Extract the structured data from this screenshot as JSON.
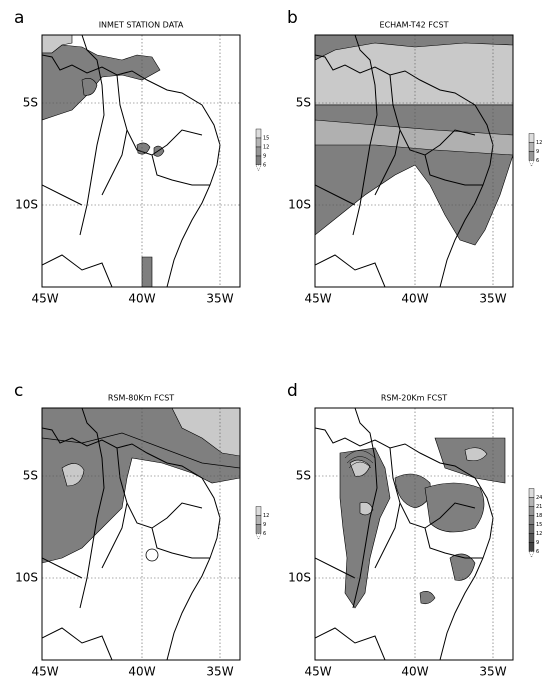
{
  "panels": [
    {
      "letter": "a",
      "title": "INMET STATION DATA",
      "lon_labels": [
        "45W",
        "40W",
        "35W"
      ],
      "lat_labels": [
        "5S",
        "10S"
      ],
      "colorbar_labels": [
        "15",
        "12",
        "9",
        "6"
      ]
    },
    {
      "letter": "b",
      "title": "ECHAM-T42 FCST",
      "lon_labels": [
        "45W",
        "40W",
        "35W"
      ],
      "lat_labels": [
        "5S",
        "10S"
      ],
      "colorbar_labels": [
        "12",
        "9",
        "6"
      ]
    },
    {
      "letter": "c",
      "title": "RSM-80Km FCST",
      "lon_labels": [
        "45W",
        "40W",
        "35W"
      ],
      "lat_labels": [
        "5S",
        "10S"
      ],
      "colorbar_labels": [
        "12",
        "9",
        "6"
      ]
    },
    {
      "letter": "d",
      "title": "RSM-20Km FCST",
      "lon_labels": [
        "45W",
        "40W",
        "35W"
      ],
      "lat_labels": [
        "5S",
        "10S"
      ],
      "colorbar_labels": [
        "24",
        "21",
        "18",
        "15",
        "12",
        "9",
        "6"
      ]
    }
  ]
}
